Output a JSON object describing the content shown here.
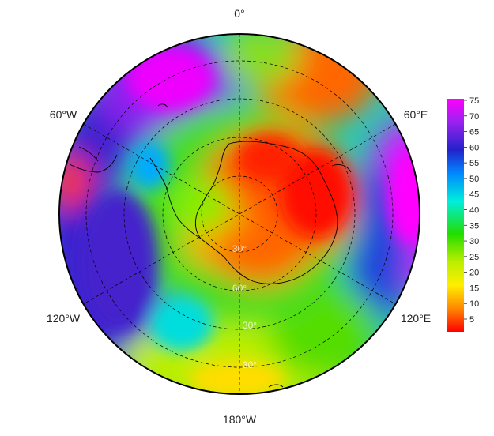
{
  "map": {
    "projection": "south-polar-stereographic",
    "grid": true,
    "longitude_labels": {
      "top": "0°",
      "upper_left": "60°W",
      "upper_right": "60°E",
      "lower_left": "120°W",
      "lower_right": "120°E",
      "bottom": "180°W"
    },
    "latitude_labels": [
      "30°",
      "60°",
      "30°",
      "30°"
    ],
    "colorbar": {
      "range": [
        0,
        75
      ],
      "ticks": [
        "75",
        "70",
        "65",
        "60",
        "55",
        "50",
        "45",
        "40",
        "35",
        "30",
        "25",
        "20",
        "15",
        "10",
        "5"
      ],
      "colors": {
        "high": "#ff00ff",
        "mid_high": "#2222cc",
        "mid": "#00ddff",
        "mid_low": "#22dd00",
        "low_mid": "#ffee00",
        "low": "#ff0000"
      }
    }
  }
}
